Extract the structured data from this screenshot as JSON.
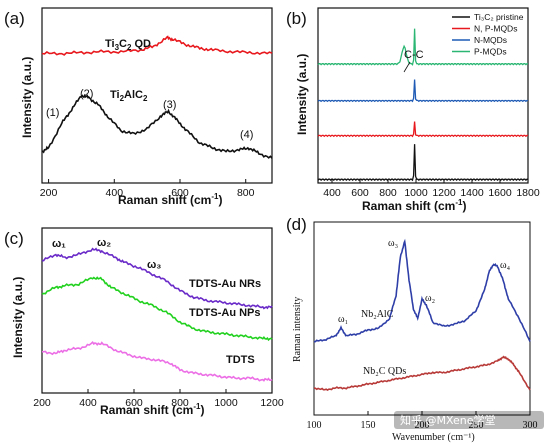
{
  "chart_data": [
    {
      "panel": "(a)",
      "type": "line",
      "xlabel": "Raman shift (cm⁻¹)",
      "ylabel": "Intensity (a.u.)",
      "xlim": [
        180,
        880
      ],
      "xticks": [
        "200",
        "400",
        "600",
        "800"
      ],
      "series": [
        {
          "name": "Ti₃C₂ QD",
          "color": "#e8191e",
          "x": [
            180,
            240,
            300,
            360,
            420,
            480,
            520,
            560,
            580,
            620,
            660,
            700,
            760,
            820,
            880
          ],
          "y": [
            0.74,
            0.74,
            0.745,
            0.75,
            0.75,
            0.76,
            0.78,
            0.83,
            0.82,
            0.79,
            0.77,
            0.76,
            0.75,
            0.745,
            0.74
          ]
        },
        {
          "name": "Ti₂AlC₂",
          "color": "#111111",
          "x": [
            180,
            200,
            240,
            270,
            300,
            320,
            350,
            380,
            420,
            460,
            500,
            540,
            565,
            590,
            620,
            660,
            700,
            740,
            780,
            810,
            840,
            880
          ],
          "y": [
            0.18,
            0.2,
            0.34,
            0.42,
            0.5,
            0.49,
            0.45,
            0.38,
            0.3,
            0.28,
            0.31,
            0.38,
            0.41,
            0.36,
            0.3,
            0.23,
            0.2,
            0.18,
            0.19,
            0.2,
            0.17,
            0.14
          ]
        }
      ],
      "annotations": [
        "(1)",
        "(2)",
        "(3)",
        "(4)"
      ]
    },
    {
      "panel": "(b)",
      "type": "line",
      "xlabel": "Raman shift (cm⁻¹)",
      "ylabel": "Intensity (a.u.)",
      "xlim": [
        300,
        1800
      ],
      "xticks": [
        "400",
        "600",
        "800",
        "1000",
        "1200",
        "1400",
        "1600",
        "1800"
      ],
      "series": [
        {
          "name": "Ti₃C₂ pristine",
          "color": "#111111",
          "baseline": 0.02,
          "peaks": [
            {
              "x": 990,
              "h": 0.2
            }
          ]
        },
        {
          "name": "N, P-MQDs",
          "color": "#e8191e",
          "baseline": 0.27,
          "peaks": [
            {
              "x": 990,
              "h": 0.08
            }
          ]
        },
        {
          "name": "N-MQDs",
          "color": "#1f5bb5",
          "baseline": 0.47,
          "peaks": [
            {
              "x": 990,
              "h": 0.12
            }
          ]
        },
        {
          "name": "P-MQDs",
          "color": "#2bb673",
          "baseline": 0.68,
          "peaks": [
            {
              "x": 915,
              "h": 0.1
            },
            {
              "x": 990,
              "h": 0.2
            }
          ]
        }
      ],
      "annotation": "C-C"
    },
    {
      "panel": "(c)",
      "type": "line",
      "xlabel": "Raman shift (cm⁻¹)",
      "ylabel": "Intensity (a.u.)",
      "xlim": [
        200,
        1200
      ],
      "xticks": [
        "200",
        "400",
        "600",
        "800",
        "1000",
        "1200"
      ],
      "series": [
        {
          "name": "TDTS-Au NRs",
          "color": "#6a2bc8",
          "x": [
            200,
            260,
            300,
            360,
            420,
            460,
            520,
            560,
            620,
            680,
            740,
            800,
            860,
            920,
            980,
            1040,
            1100,
            1160,
            1200
          ],
          "y": [
            0.8,
            0.84,
            0.82,
            0.84,
            0.87,
            0.86,
            0.82,
            0.79,
            0.76,
            0.72,
            0.68,
            0.62,
            0.58,
            0.56,
            0.55,
            0.54,
            0.53,
            0.52,
            0.52
          ]
        },
        {
          "name": "TDTS-Au NPs",
          "color": "#22d11f",
          "x": [
            200,
            260,
            300,
            360,
            420,
            460,
            500,
            560,
            620,
            680,
            740,
            800,
            860,
            920,
            980,
            1040,
            1100,
            1160,
            1200
          ],
          "y": [
            0.6,
            0.64,
            0.65,
            0.66,
            0.7,
            0.69,
            0.64,
            0.6,
            0.56,
            0.53,
            0.49,
            0.43,
            0.39,
            0.37,
            0.36,
            0.35,
            0.34,
            0.33,
            0.33
          ]
        },
        {
          "name": "TDTS",
          "color": "#ec6fe6",
          "x": [
            200,
            260,
            300,
            360,
            420,
            460,
            520,
            580,
            640,
            700,
            760,
            800,
            860,
            920,
            980,
            1040,
            1100,
            1160,
            1200
          ],
          "y": [
            0.25,
            0.24,
            0.26,
            0.27,
            0.3,
            0.3,
            0.26,
            0.23,
            0.21,
            0.2,
            0.18,
            0.14,
            0.12,
            0.11,
            0.1,
            0.09,
            0.09,
            0.08,
            0.08
          ]
        }
      ],
      "annotations": [
        "ω₁",
        "ω₂",
        "ω₃"
      ]
    },
    {
      "panel": "(d)",
      "type": "line",
      "xlabel": "Wavenumber (cm⁻¹)",
      "ylabel": "Raman intensity",
      "xlim": [
        100,
        300
      ],
      "xticks": [
        "100",
        "150",
        "200",
        "250",
        "300"
      ],
      "series": [
        {
          "name": "Nb₂AlC",
          "color": "#2f3fa8",
          "x": [
            100,
            110,
            120,
            125,
            130,
            140,
            150,
            160,
            170,
            176,
            180,
            184,
            188,
            192,
            196,
            200,
            204,
            210,
            220,
            230,
            240,
            250,
            258,
            262,
            266,
            270,
            275,
            280,
            290,
            300
          ],
          "y": [
            0.38,
            0.39,
            0.41,
            0.45,
            0.41,
            0.42,
            0.44,
            0.45,
            0.5,
            0.62,
            0.82,
            0.9,
            0.7,
            0.55,
            0.5,
            0.6,
            0.57,
            0.48,
            0.46,
            0.47,
            0.49,
            0.54,
            0.65,
            0.74,
            0.78,
            0.77,
            0.7,
            0.6,
            0.5,
            0.38
          ]
        },
        {
          "name": "Nb₂C QDs",
          "color": "#b83a38",
          "x": [
            100,
            110,
            120,
            130,
            140,
            150,
            160,
            170,
            180,
            190,
            200,
            210,
            220,
            230,
            240,
            250,
            260,
            270,
            275,
            280,
            285,
            290,
            300
          ],
          "y": [
            0.14,
            0.13,
            0.14,
            0.14,
            0.15,
            0.16,
            0.17,
            0.18,
            0.19,
            0.2,
            0.21,
            0.22,
            0.22,
            0.23,
            0.24,
            0.25,
            0.26,
            0.28,
            0.3,
            0.29,
            0.26,
            0.22,
            0.13
          ]
        }
      ],
      "annotations": [
        "ω₁",
        "ω₂",
        "ω₃",
        "ω₄"
      ]
    }
  ],
  "panels": {
    "a": {
      "label": "(a)",
      "qd_label": "Ti",
      "qd_sub1": "3",
      "qd_mid": "C",
      "qd_sub2": "2",
      "qd_tail": " QD",
      "alc_label": "Ti",
      "alc_sub1": "2",
      "alc_mid": "AlC",
      "alc_sub2": "2",
      "p1": "(1)",
      "p2": "(2)",
      "p3": "(3)",
      "p4": "(4)",
      "xlabel": "Raman shift (cm",
      "xlabel_sup": "-1",
      "xlabel_end": ")",
      "ylabel": "Intensity (a.u.)",
      "ticks": [
        "200",
        "400",
        "600",
        "800"
      ]
    },
    "b": {
      "label": "(b)",
      "cc": "C-C",
      "xlabel": "Raman shift (cm",
      "xlabel_sup": "-1",
      "xlabel_end": ")",
      "ylabel": "Intensity (a.u.)",
      "ticks": [
        "400",
        "600",
        "800",
        "1000",
        "1200",
        "1400",
        "1600",
        "1800"
      ],
      "legend": [
        "Ti₃C₂ pristine",
        "N, P-MQDs",
        "N-MQDs",
        "P-MQDs"
      ]
    },
    "c": {
      "label": "(c)",
      "w1": "ω₁",
      "w2": "ω₂",
      "w3": "ω₃",
      "s1": "TDTS-Au NRs",
      "s2": "TDTS-Au NPs",
      "s3": "TDTS",
      "xlabel": "Raman shift (cm",
      "xlabel_sup": "-1",
      "xlabel_end": ")",
      "ylabel": "Intensity (a.u.)",
      "ticks": [
        "200",
        "400",
        "600",
        "800",
        "1000",
        "1200"
      ]
    },
    "d": {
      "label": "(d)",
      "w1": "ω₁",
      "w2": "ω₂",
      "w3": "ω₃",
      "w4": "ω₄",
      "s1": "Nb₂AlC",
      "s2": "Nb₂C QDs",
      "xlabel": "Wavenumber (cm⁻¹)",
      "ylabel": "Raman intensity",
      "ticks": [
        "100",
        "150",
        "200",
        "250",
        "300"
      ]
    }
  },
  "watermark": "知乎 @MXene学堂"
}
